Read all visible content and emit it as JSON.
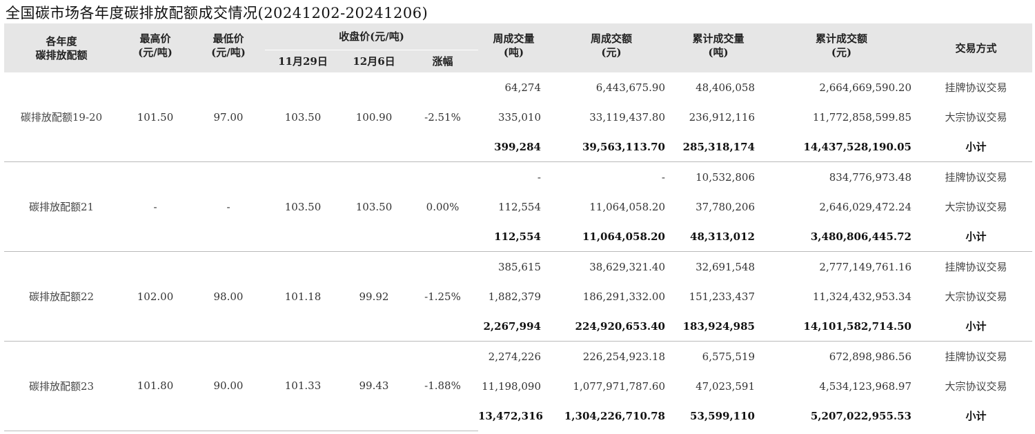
{
  "title": "全国碳市场各年度碳排放配额成交情况(20241202-20241206)",
  "header": {
    "allowance": [
      "各年度",
      "碳排放配额"
    ],
    "high": [
      "最高价",
      "(元/吨)"
    ],
    "low": [
      "最低价",
      "(元/吨)"
    ],
    "close_group": "收盘价(元/吨)",
    "close_prev": "11月29日",
    "close_curr": "12月6日",
    "change": "涨幅",
    "week_volume": [
      "周成交量",
      "(吨)"
    ],
    "week_amount": [
      "周成交额",
      "(元)"
    ],
    "cum_volume": [
      "累计成交量",
      "(吨)"
    ],
    "cum_amount": [
      "累计成交额",
      "(元)"
    ],
    "method": "交易方式"
  },
  "groups": [
    {
      "name": "碳排放配额19-20",
      "high": "101.50",
      "low": "97.00",
      "close_prev": "103.50",
      "close_curr": "100.90",
      "change": "-2.51%",
      "rows": [
        {
          "week_volume": "64,274",
          "week_amount": "6,443,675.90",
          "cum_volume": "48,406,058",
          "cum_amount": "2,664,669,590.20",
          "method": "挂牌协议交易"
        },
        {
          "week_volume": "335,010",
          "week_amount": "33,119,437.80",
          "cum_volume": "236,912,116",
          "cum_amount": "11,772,858,599.85",
          "method": "大宗协议交易"
        },
        {
          "week_volume": "399,284",
          "week_amount": "39,563,113.70",
          "cum_volume": "285,318,174",
          "cum_amount": "14,437,528,190.05",
          "method": "小计"
        }
      ]
    },
    {
      "name": "碳排放配额21",
      "high": "-",
      "low": "-",
      "close_prev": "103.50",
      "close_curr": "103.50",
      "change": "0.00%",
      "rows": [
        {
          "week_volume": "-",
          "week_amount": "-",
          "cum_volume": "10,532,806",
          "cum_amount": "834,776,973.48",
          "method": "挂牌协议交易"
        },
        {
          "week_volume": "112,554",
          "week_amount": "11,064,058.20",
          "cum_volume": "37,780,206",
          "cum_amount": "2,646,029,472.24",
          "method": "大宗协议交易"
        },
        {
          "week_volume": "112,554",
          "week_amount": "11,064,058.20",
          "cum_volume": "48,313,012",
          "cum_amount": "3,480,806,445.72",
          "method": "小计"
        }
      ]
    },
    {
      "name": "碳排放配额22",
      "high": "102.00",
      "low": "98.00",
      "close_prev": "101.18",
      "close_curr": "99.92",
      "change": "-1.25%",
      "rows": [
        {
          "week_volume": "385,615",
          "week_amount": "38,629,321.40",
          "cum_volume": "32,691,548",
          "cum_amount": "2,777,149,761.16",
          "method": "挂牌协议交易"
        },
        {
          "week_volume": "1,882,379",
          "week_amount": "186,291,332.00",
          "cum_volume": "151,233,437",
          "cum_amount": "11,324,432,953.34",
          "method": "大宗协议交易"
        },
        {
          "week_volume": "2,267,994",
          "week_amount": "224,920,653.40",
          "cum_volume": "183,924,985",
          "cum_amount": "14,101,582,714.50",
          "method": "小计"
        }
      ]
    },
    {
      "name": "碳排放配额23",
      "high": "101.80",
      "low": "90.00",
      "close_prev": "101.33",
      "close_curr": "99.43",
      "change": "-1.88%",
      "rows": [
        {
          "week_volume": "2,274,226",
          "week_amount": "226,254,923.18",
          "cum_volume": "6,575,519",
          "cum_amount": "672,898,986.56",
          "method": "挂牌协议交易"
        },
        {
          "week_volume": "11,198,090",
          "week_amount": "1,077,971,787.60",
          "cum_volume": "47,023,591",
          "cum_amount": "4,534,123,968.97",
          "method": "大宗协议交易"
        },
        {
          "week_volume": "13,472,316",
          "week_amount": "1,304,226,710.78",
          "cum_volume": "53,599,110",
          "cum_amount": "5,207,022,955.53",
          "method": "小计"
        }
      ]
    }
  ]
}
